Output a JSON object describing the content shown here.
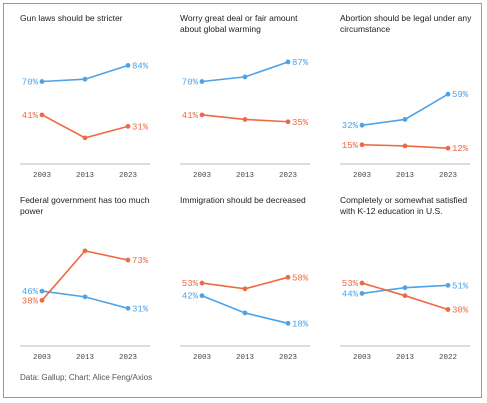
{
  "chart_data": [
    {
      "type": "line",
      "title": "Gun laws should be stricter",
      "x": [
        "2003",
        "2013",
        "2023"
      ],
      "series": [
        {
          "color": "#4da3e8",
          "values": [
            70,
            72,
            84
          ],
          "start_label": "70%",
          "end_label": "84%"
        },
        {
          "color": "#ee6a45",
          "values": [
            41,
            21,
            31
          ],
          "start_label": "41%",
          "end_label": "31%"
        }
      ]
    },
    {
      "type": "line",
      "title": "Worry great deal or fair amount about global warming",
      "x": [
        "2003",
        "2013",
        "2023"
      ],
      "series": [
        {
          "color": "#4da3e8",
          "values": [
            70,
            74,
            87
          ],
          "start_label": "70%",
          "end_label": "87%"
        },
        {
          "color": "#ee6a45",
          "values": [
            41,
            37,
            35
          ],
          "start_label": "41%",
          "end_label": "35%"
        }
      ]
    },
    {
      "type": "line",
      "title": "Abortion should be legal under any circumstance",
      "x": [
        "2003",
        "2013",
        "2023"
      ],
      "series": [
        {
          "color": "#4da3e8",
          "values": [
            32,
            37,
            59
          ],
          "start_label": "32%",
          "end_label": "59%"
        },
        {
          "color": "#ee6a45",
          "values": [
            15,
            14,
            12
          ],
          "start_label": "15%",
          "end_label": "12%"
        }
      ]
    },
    {
      "type": "line",
      "title": "Federal government has too much power",
      "x": [
        "2003",
        "2013",
        "2023"
      ],
      "series": [
        {
          "color": "#4da3e8",
          "values": [
            46,
            41,
            31
          ],
          "start_label": "46%",
          "end_label": "31%"
        },
        {
          "color": "#ee6a45",
          "values": [
            38,
            81,
            73
          ],
          "start_label": "38%",
          "end_label": "73%"
        }
      ]
    },
    {
      "type": "line",
      "title": "Immigration should be decreased",
      "x": [
        "2003",
        "2013",
        "2023"
      ],
      "series": [
        {
          "color": "#4da3e8",
          "values": [
            42,
            27,
            18
          ],
          "start_label": "42%",
          "end_label": "18%"
        },
        {
          "color": "#ee6a45",
          "values": [
            53,
            48,
            58
          ],
          "start_label": "53%",
          "end_label": "58%"
        }
      ]
    },
    {
      "type": "line",
      "title": "Completely or somewhat satisfied with K-12 education in U.S.",
      "x": [
        "2003",
        "2013",
        "2022"
      ],
      "series": [
        {
          "color": "#4da3e8",
          "values": [
            44,
            49,
            51
          ],
          "start_label": "44%",
          "end_label": "51%"
        },
        {
          "color": "#ee6a45",
          "values": [
            53,
            42,
            30
          ],
          "start_label": "53%",
          "end_label": "30%"
        }
      ]
    }
  ],
  "source": "Data: Gallup; Chart: Alice Feng/Axios"
}
